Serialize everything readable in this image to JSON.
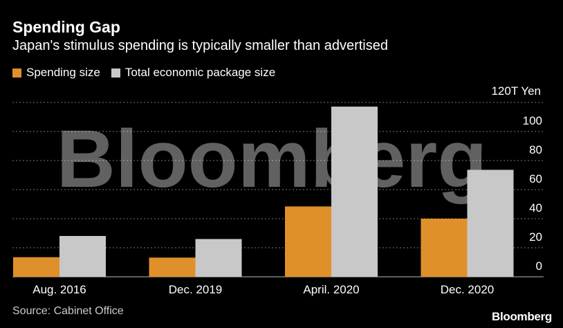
{
  "chart_data": {
    "type": "bar",
    "title": "Spending Gap",
    "subtitle": "Japan's stimulus spending is typically smaller than advertised",
    "categories": [
      "Aug. 2016",
      "Dec. 2019",
      "April. 2020",
      "Dec. 2020"
    ],
    "series": [
      {
        "name": "Spending size",
        "color": "#E0902A",
        "values": [
          13.5,
          13.2,
          48.4,
          40.0
        ]
      },
      {
        "name": "Total economic package size",
        "color": "#C8C8C8",
        "values": [
          28.1,
          26.0,
          117.1,
          73.6
        ]
      }
    ],
    "ylim": [
      0,
      120
    ],
    "yticks": [
      0,
      20,
      40,
      60,
      80,
      100
    ],
    "ytop_label": "120T Yen",
    "grid": true,
    "legend": "top-left",
    "source": "Source: Cabinet Office",
    "watermark": "Bloomberg"
  },
  "branding": "Bloomberg"
}
